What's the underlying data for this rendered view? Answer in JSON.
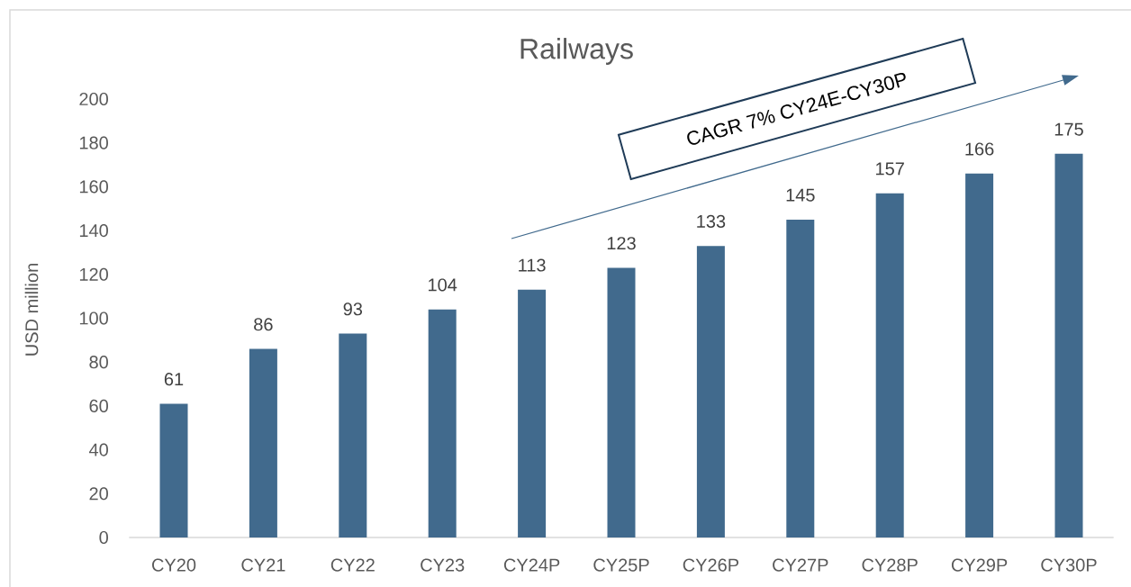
{
  "chart_data": {
    "type": "bar",
    "title": "Railways",
    "ylabel": "USD million",
    "categories": [
      "CY20",
      "CY21",
      "CY22",
      "CY23",
      "CY24P",
      "CY25P",
      "CY26P",
      "CY27P",
      "CY28P",
      "CY29P",
      "CY30P"
    ],
    "values": [
      61,
      86,
      93,
      104,
      113,
      123,
      133,
      145,
      157,
      166,
      175
    ],
    "color": "#416a8d",
    "ylim": [
      0,
      200
    ],
    "yticks": [
      0,
      20,
      40,
      60,
      80,
      100,
      120,
      140,
      160,
      180,
      200
    ],
    "data_labels": true,
    "annotations": [
      "CAGR 7% CY24E-CY30P"
    ]
  }
}
